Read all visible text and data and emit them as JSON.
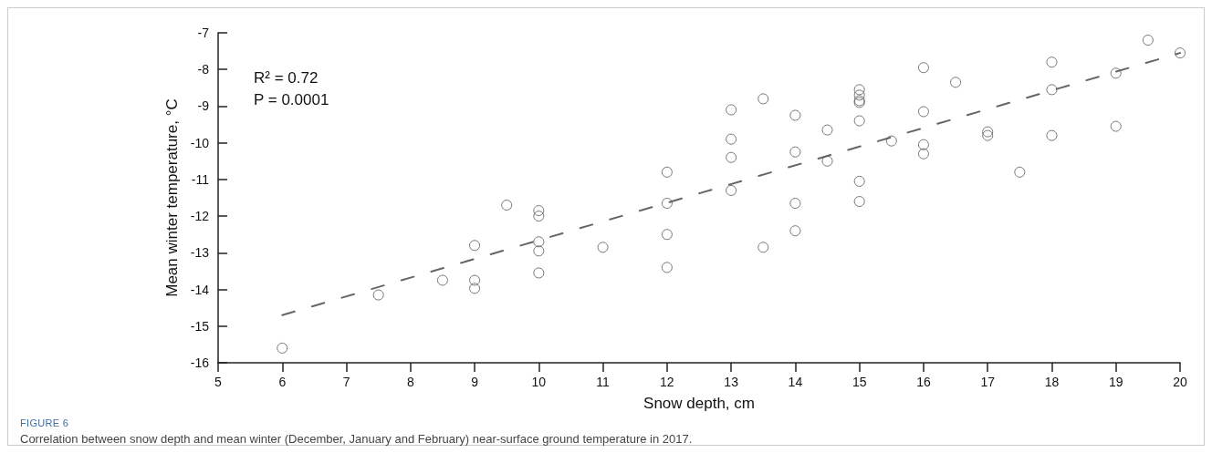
{
  "chart_data": {
    "type": "scatter",
    "xlabel": "Snow depth, cm",
    "ylabel": "Mean winter temperature, °C",
    "annotations": [
      "R² = 0.72",
      "P = 0.0001",
      "FIGURE 6",
      "Correlation between snow depth and mean winter (December, January and February) near-surface ground temperature in 2017."
    ],
    "series": [
      {
        "color": "#555555",
        "marker": "circle",
        "x": [
          6,
          7.5,
          8.5,
          9,
          9,
          9,
          9.5,
          10,
          10,
          10,
          10,
          10,
          11,
          12,
          12,
          12,
          12,
          13,
          13,
          13,
          13,
          13.5,
          13.5,
          14,
          14,
          14,
          14,
          14.5,
          14.5,
          15,
          15,
          15,
          15,
          15,
          15,
          15,
          15.5,
          16,
          16,
          16,
          16,
          16.5,
          17,
          17,
          17.5,
          18,
          18,
          18,
          19,
          19,
          19.5,
          20
        ],
        "values": [
          -15.6,
          -14.15,
          -13.75,
          -12.8,
          -13.75,
          -13.97,
          -11.7,
          -11.85,
          -12.0,
          -12.7,
          -12.95,
          -13.55,
          -12.85,
          -10.8,
          -11.65,
          -12.5,
          -13.4,
          -9.1,
          -9.9,
          -10.4,
          -11.3,
          -8.8,
          -12.85,
          -9.25,
          -10.25,
          -11.65,
          -12.4,
          -9.65,
          -10.5,
          -8.55,
          -8.7,
          -8.85,
          -8.9,
          -9.4,
          -11.05,
          -11.6,
          -9.95,
          -7.95,
          -9.15,
          -10.05,
          -10.3,
          -8.35,
          -9.7,
          -9.8,
          -10.8,
          -7.8,
          -8.55,
          -9.8,
          -8.1,
          -9.55,
          -7.2,
          -7.55
        ]
      },
      {
        "type": "line",
        "color": "#666666",
        "line_style": "dashed",
        "marker": "none",
        "x": [
          6,
          20
        ],
        "values": [
          -14.7,
          -7.55
        ]
      }
    ],
    "xlim": [
      5,
      20
    ],
    "xticks": [
      5,
      6,
      7,
      8,
      9,
      10,
      11,
      12,
      13,
      14,
      15,
      16,
      17,
      18,
      19,
      20
    ],
    "ylim": [
      -16,
      -7
    ],
    "yticks": [
      -16,
      -15,
      -14,
      -13,
      -12,
      -11,
      -10,
      -9,
      -8,
      -7
    ],
    "grid": false
  }
}
